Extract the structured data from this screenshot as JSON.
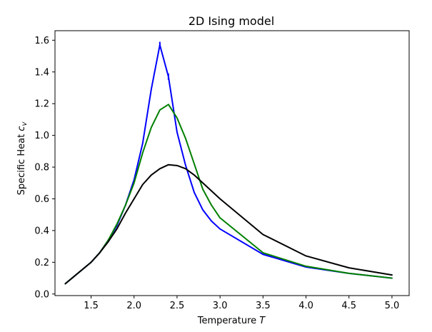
{
  "chart_data": {
    "type": "line",
    "title": "2D Ising model",
    "xlabel_text": "Temperature ",
    "xlabel_symbol": "T",
    "ylabel_text": "Specific Heat ",
    "ylabel_symbol": "c",
    "ylabel_subscript": "v",
    "xlim": [
      1.08,
      5.2
    ],
    "ylim": [
      -0.01,
      1.66
    ],
    "xticks": [
      1.5,
      2.0,
      2.5,
      3.0,
      3.5,
      4.0,
      4.5,
      5.0
    ],
    "xtick_labels": [
      "1.5",
      "2.0",
      "2.5",
      "3.0",
      "3.5",
      "4.0",
      "4.5",
      "5.0"
    ],
    "yticks": [
      0.0,
      0.2,
      0.4,
      0.6,
      0.8,
      1.0,
      1.2,
      1.4,
      1.6
    ],
    "ytick_labels": [
      "0.0",
      "0.2",
      "0.4",
      "0.6",
      "0.8",
      "1.0",
      "1.2",
      "1.4",
      "1.6"
    ],
    "grid": false,
    "series": [
      {
        "name": "blue",
        "color": "#0000ff",
        "x": [
          1.2,
          1.5,
          1.6,
          1.7,
          1.8,
          1.9,
          2.0,
          2.1,
          2.2,
          2.3,
          2.4,
          2.5,
          2.6,
          2.7,
          2.8,
          2.9,
          3.0,
          3.5,
          4.0,
          4.5,
          5.0
        ],
        "y": [
          0.065,
          0.2,
          0.26,
          0.34,
          0.43,
          0.56,
          0.72,
          0.95,
          1.29,
          1.57,
          1.37,
          1.02,
          0.81,
          0.64,
          0.53,
          0.46,
          0.41,
          0.25,
          0.17,
          0.13,
          0.1
        ],
        "error_bars": [
          {
            "x": 2.3,
            "err": 0.02
          },
          {
            "x": 2.4,
            "err": 0.02
          }
        ]
      },
      {
        "name": "green",
        "color": "#008000",
        "x": [
          1.2,
          1.5,
          1.6,
          1.7,
          1.8,
          1.9,
          2.0,
          2.1,
          2.2,
          2.3,
          2.4,
          2.5,
          2.6,
          2.7,
          2.8,
          2.9,
          3.0,
          3.5,
          4.0,
          4.5,
          5.0
        ],
        "y": [
          0.065,
          0.2,
          0.26,
          0.34,
          0.44,
          0.56,
          0.7,
          0.89,
          1.05,
          1.16,
          1.195,
          1.11,
          0.98,
          0.82,
          0.66,
          0.56,
          0.48,
          0.26,
          0.175,
          0.13,
          0.1
        ]
      },
      {
        "name": "black",
        "color": "#000000",
        "x": [
          1.2,
          1.5,
          1.6,
          1.7,
          1.8,
          1.9,
          2.0,
          2.1,
          2.2,
          2.3,
          2.4,
          2.5,
          2.6,
          2.7,
          2.8,
          3.0,
          3.5,
          4.0,
          4.5,
          5.0
        ],
        "y": [
          0.065,
          0.2,
          0.26,
          0.33,
          0.41,
          0.51,
          0.6,
          0.69,
          0.75,
          0.79,
          0.815,
          0.81,
          0.79,
          0.75,
          0.7,
          0.6,
          0.375,
          0.24,
          0.165,
          0.12
        ]
      }
    ]
  }
}
